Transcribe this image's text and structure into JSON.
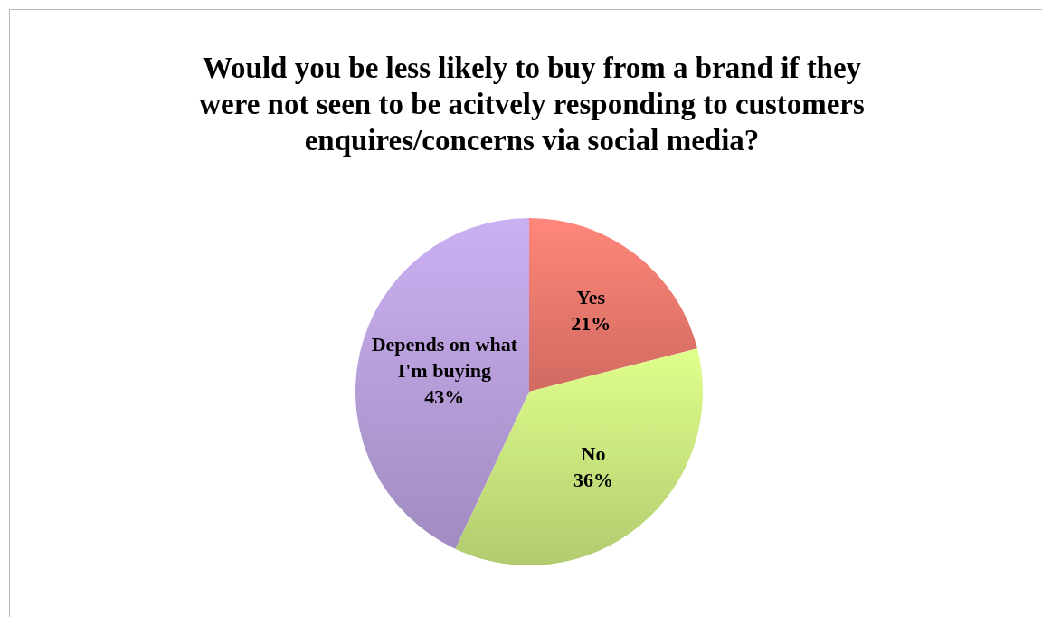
{
  "chart_data": {
    "type": "pie",
    "title": "Would you be less likely to buy from a brand if they were not seen to be acitvely responding to customers enquires/concerns via social media?",
    "categories": [
      "Yes",
      "No",
      "Depends on what I'm buying"
    ],
    "values": [
      21,
      36,
      43
    ],
    "value_labels": [
      "21%",
      "36%",
      "43%"
    ],
    "colors": [
      "#e9766c",
      "#c6e27c",
      "#b39bd6"
    ],
    "legend": false
  }
}
